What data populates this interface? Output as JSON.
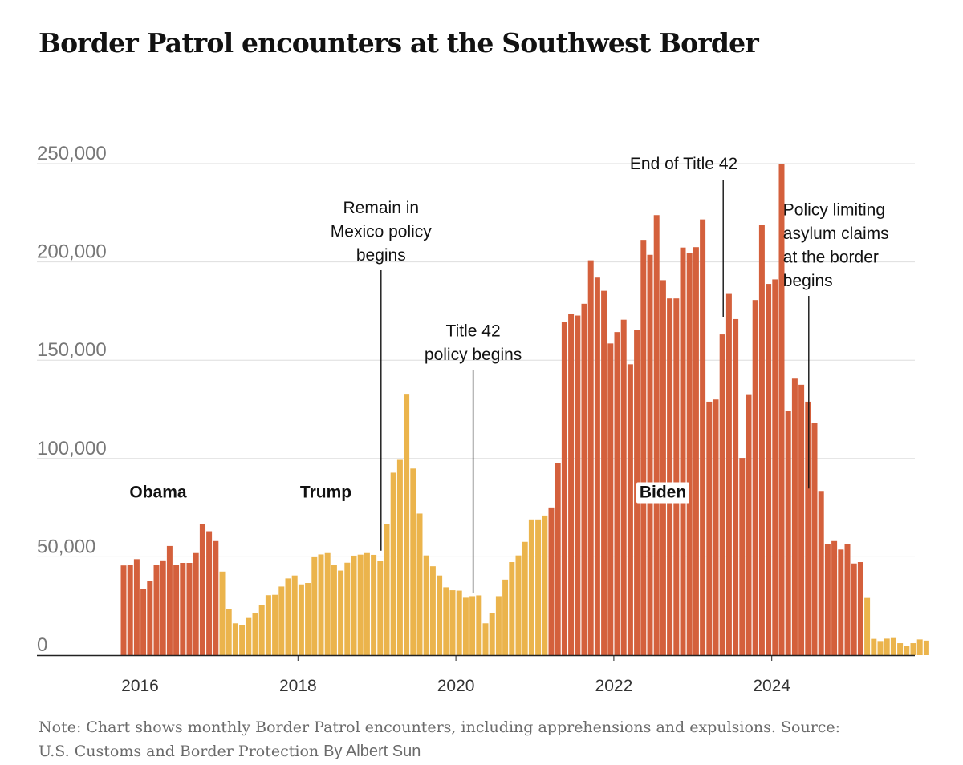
{
  "chart_data": {
    "type": "bar",
    "title": "Border Patrol encounters at the Southwest Border",
    "xlabel": "",
    "ylabel": "",
    "ylim": [
      0,
      250000
    ],
    "yticks": [
      0,
      50000,
      100000,
      150000,
      200000,
      250000
    ],
    "ytick_labels": [
      "0",
      "50,000",
      "100,000",
      "150,000",
      "200,000",
      "250,000"
    ],
    "xticks": [
      {
        "year": 2016,
        "label": "2016"
      },
      {
        "year": 2018,
        "label": "2018"
      },
      {
        "year": 2020,
        "label": "2020"
      },
      {
        "year": 2022,
        "label": "2022"
      },
      {
        "year": 2024,
        "label": "2024"
      }
    ],
    "start": {
      "year": 2015,
      "month": 10
    },
    "colors": {
      "obama": "#d4603c",
      "trump": "#ebb44c",
      "biden": "#d4603c"
    },
    "series": [
      {
        "name": "Obama",
        "color_key": "obama",
        "values": [
          45600,
          46000,
          48800,
          33800,
          37900,
          45900,
          48200,
          55500,
          46000,
          46900,
          46900,
          51900,
          66700,
          63000,
          58000
        ]
      },
      {
        "name": "Trump",
        "color_key": "trump",
        "values": [
          42500,
          23500,
          16200,
          15300,
          18900,
          21200,
          25500,
          30500,
          30700,
          34900,
          39000,
          40500,
          36000,
          36700,
          50200,
          51200,
          51900,
          46000,
          43000,
          47000,
          50600,
          51100,
          51900,
          51000,
          47900,
          66500,
          92800,
          99300,
          132900,
          94900,
          71999,
          50700,
          45200,
          40500,
          34500,
          33000,
          32800,
          29200,
          30000,
          30400,
          16200,
          21600,
          30000,
          38400,
          47300,
          50700,
          57600,
          69000,
          69000,
          71000
        ]
      },
      {
        "name": "Biden",
        "color_key": "biden",
        "values": [
          75100,
          97500,
          169300,
          173700,
          172700,
          178700,
          200800,
          192000,
          185300,
          158500,
          164300,
          170600,
          147900,
          165300,
          211200,
          203600,
          223800,
          190700,
          181400,
          181400,
          207300,
          204700,
          207500,
          221600,
          128900,
          130000,
          163100,
          183700,
          170900,
          100300,
          132700,
          180600,
          218700,
          188800,
          191100,
          250000,
          124200,
          140600,
          137500,
          128900,
          117900,
          83500,
          56400,
          58000,
          53700,
          56500,
          46600,
          47300
        ]
      },
      {
        "name": "Trump",
        "color_key": "trump",
        "values": [
          29100,
          8300,
          7200,
          8400,
          8700,
          6100,
          4600,
          6100,
          8000,
          7400
        ]
      }
    ],
    "presidents": [
      {
        "label": "Obama",
        "month_index": 4,
        "value": 83000,
        "boxed": false
      },
      {
        "label": "Trump",
        "month_index": 23,
        "value": 83000,
        "boxed": false
      },
      {
        "label": "Biden",
        "month_index": 69,
        "value": 83000,
        "boxed": true
      }
    ],
    "annotations": [
      {
        "lines": [
          "Remain in",
          "Mexico policy",
          "begins"
        ],
        "month_index": 39,
        "value": 51900,
        "align": "middle"
      },
      {
        "lines": [
          "Title 42",
          "policy begins"
        ],
        "month_index": 53,
        "value": 30400,
        "align": "middle"
      },
      {
        "lines": [
          "End of Title 42"
        ],
        "month_index": 91,
        "value": 170900,
        "align": "end"
      },
      {
        "lines": [
          "Policy limiting",
          "asylum claims",
          "at the border",
          "begins"
        ],
        "month_index": 104,
        "value": 83500,
        "align": "start"
      }
    ]
  },
  "note": {
    "text": "Note: Chart shows monthly Border Patrol encounters, including apprehensions and expulsions.",
    "source": "Source: U.S. Customs and Border Protection",
    "byline": "By Albert Sun"
  }
}
